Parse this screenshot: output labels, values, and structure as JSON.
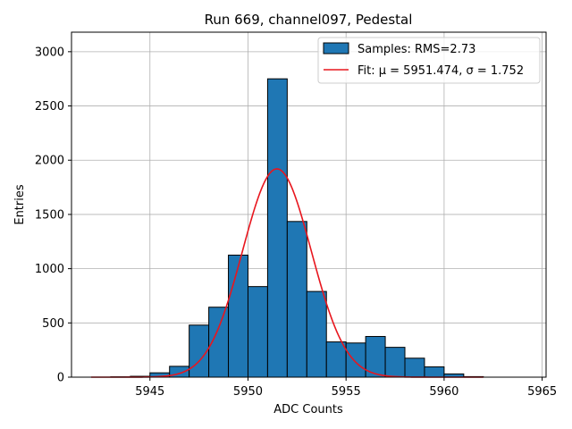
{
  "chart_data": {
    "type": "bar",
    "title": "Run 669, channel097, Pedestal",
    "xlabel": "ADC Counts",
    "ylabel": "Entries",
    "xlim": [
      5941,
      5965.2
    ],
    "ylim": [
      0,
      3180
    ],
    "grid": true,
    "legend_position": "top-right",
    "x_ticks": [
      5945,
      5950,
      5955,
      5960,
      5965
    ],
    "y_ticks": [
      0,
      500,
      1000,
      1500,
      2000,
      2500,
      3000
    ],
    "bar_color": "#1f77b4",
    "bar_edge_color": "#000000",
    "fit_color": "#e8161e",
    "series": [
      {
        "name": "Samples: RMS=2.73",
        "kind": "histogram",
        "bin_edges": [
          5942,
          5943,
          5944,
          5945,
          5946,
          5947,
          5948,
          5949,
          5950,
          5951,
          5952,
          5953,
          5954,
          5955,
          5956,
          5957,
          5958,
          5959,
          5960,
          5961,
          5962
        ],
        "values": [
          0,
          3,
          8,
          40,
          100,
          480,
          645,
          1125,
          835,
          2750,
          1435,
          790,
          325,
          315,
          375,
          275,
          175,
          95,
          30,
          5
        ]
      },
      {
        "name": "Fit: μ = 5951.474, σ = 1.752",
        "kind": "gaussian_fit",
        "mu": 5951.474,
        "sigma": 1.752,
        "amplitude": 1920,
        "x_range": [
          5942,
          5962
        ]
      }
    ]
  }
}
